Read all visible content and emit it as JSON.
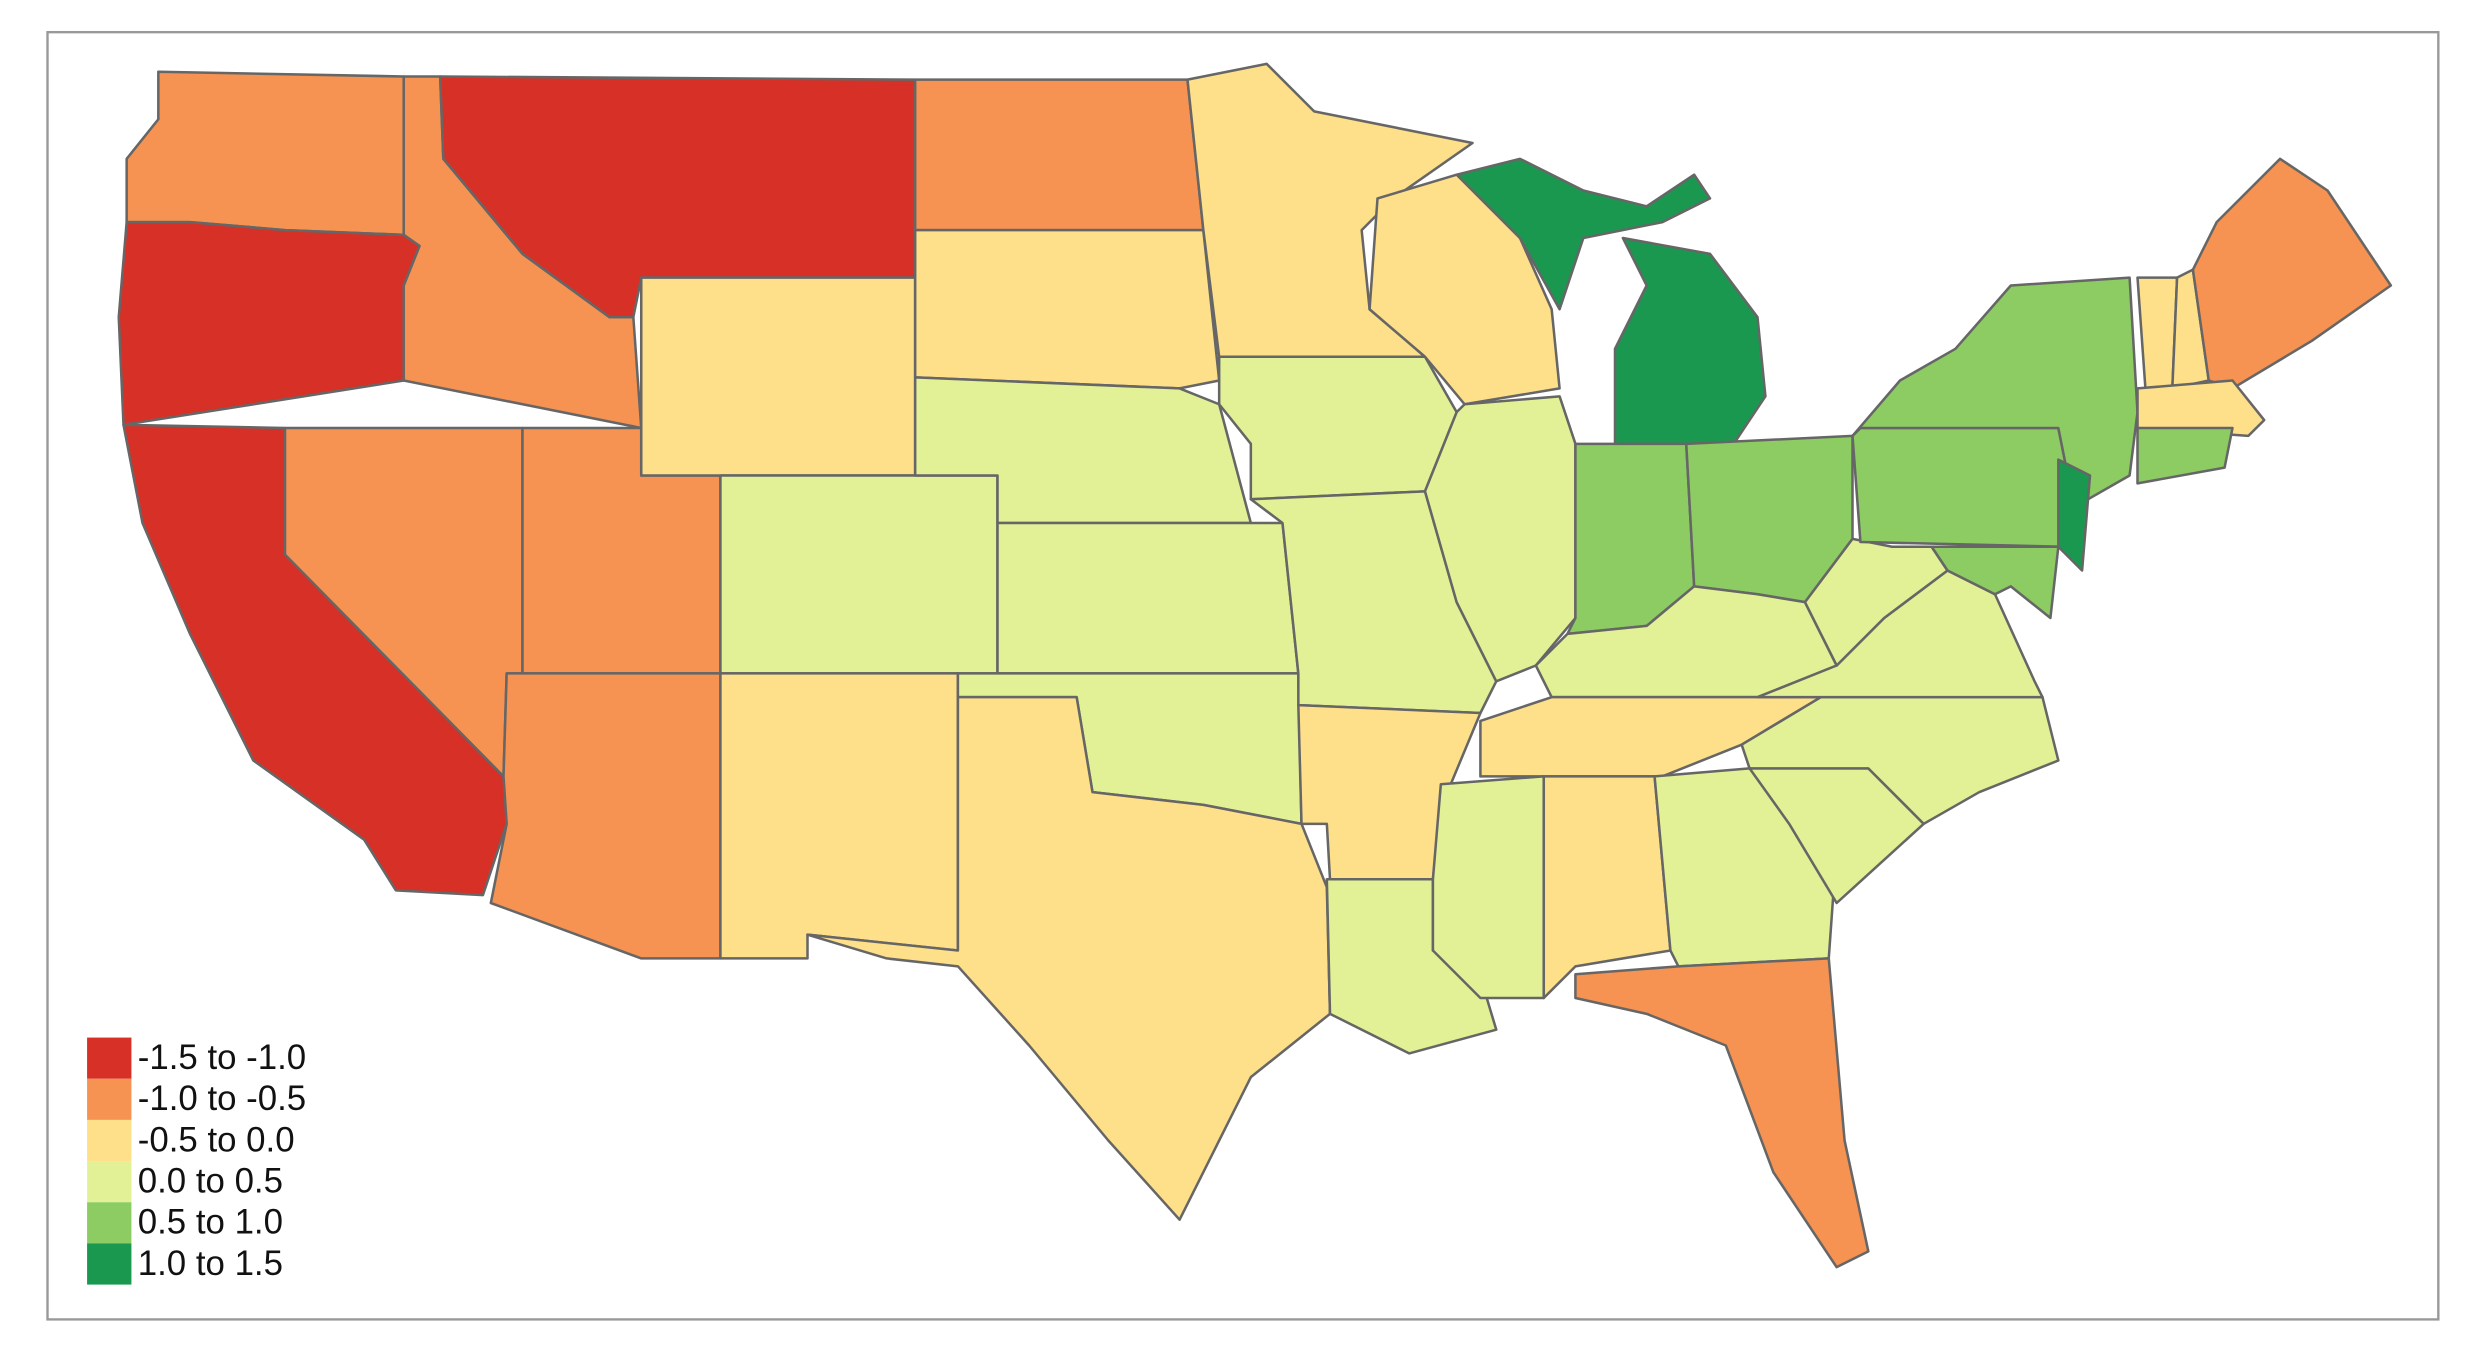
{
  "legend": {
    "items": [
      {
        "label": "-1.5 to -1.0",
        "color": "#d73027"
      },
      {
        "label": "-1.0 to -0.5",
        "color": "#f69352"
      },
      {
        "label": "-0.5 to 0.0",
        "color": "#fee08b"
      },
      {
        "label": "0.0 to 0.5",
        "color": "#e3f196"
      },
      {
        "label": "0.5 to 1.0",
        "color": "#8ccc62"
      },
      {
        "label": "1.0 to 1.5",
        "color": "#1a9850"
      }
    ]
  }
}
